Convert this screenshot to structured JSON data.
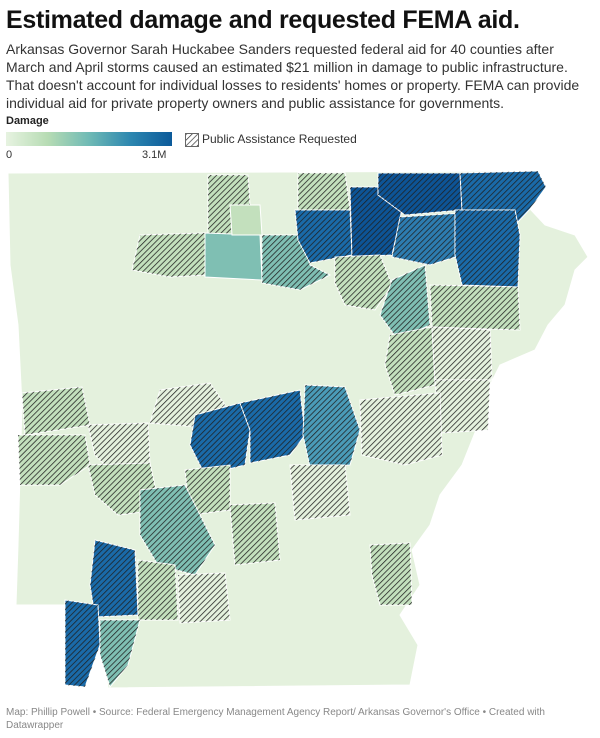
{
  "title": "Estimated damage and requested FEMA aid.",
  "description": "Arkansas Governor Sarah Huckabee Sanders requested federal aid for 40 counties after March and April storms caused an estimated $21 million in damage to public infrastructure. That doesn't account for individual losses to residents' homes or property. FEMA can provide individual aid for private property owners and public assistance for governments.",
  "legend": {
    "damage_label": "Damage",
    "min": "0",
    "max": "3.1M",
    "hatch_label": "Public Assistance Requested"
  },
  "colors": {
    "base": "#e4f1dd",
    "light": "#c3e0bd",
    "mid": "#7fbfb3",
    "teal": "#4a9bb8",
    "dark": "#1a6aa8",
    "darkest": "#0d5496",
    "border": "#ffffff",
    "hatch": "#222222"
  },
  "footer": "Map: Phillip Powell • Source: Federal Emergency Management Agency Report/ Arkansas Governor's Office • Created with Datawrapper"
}
